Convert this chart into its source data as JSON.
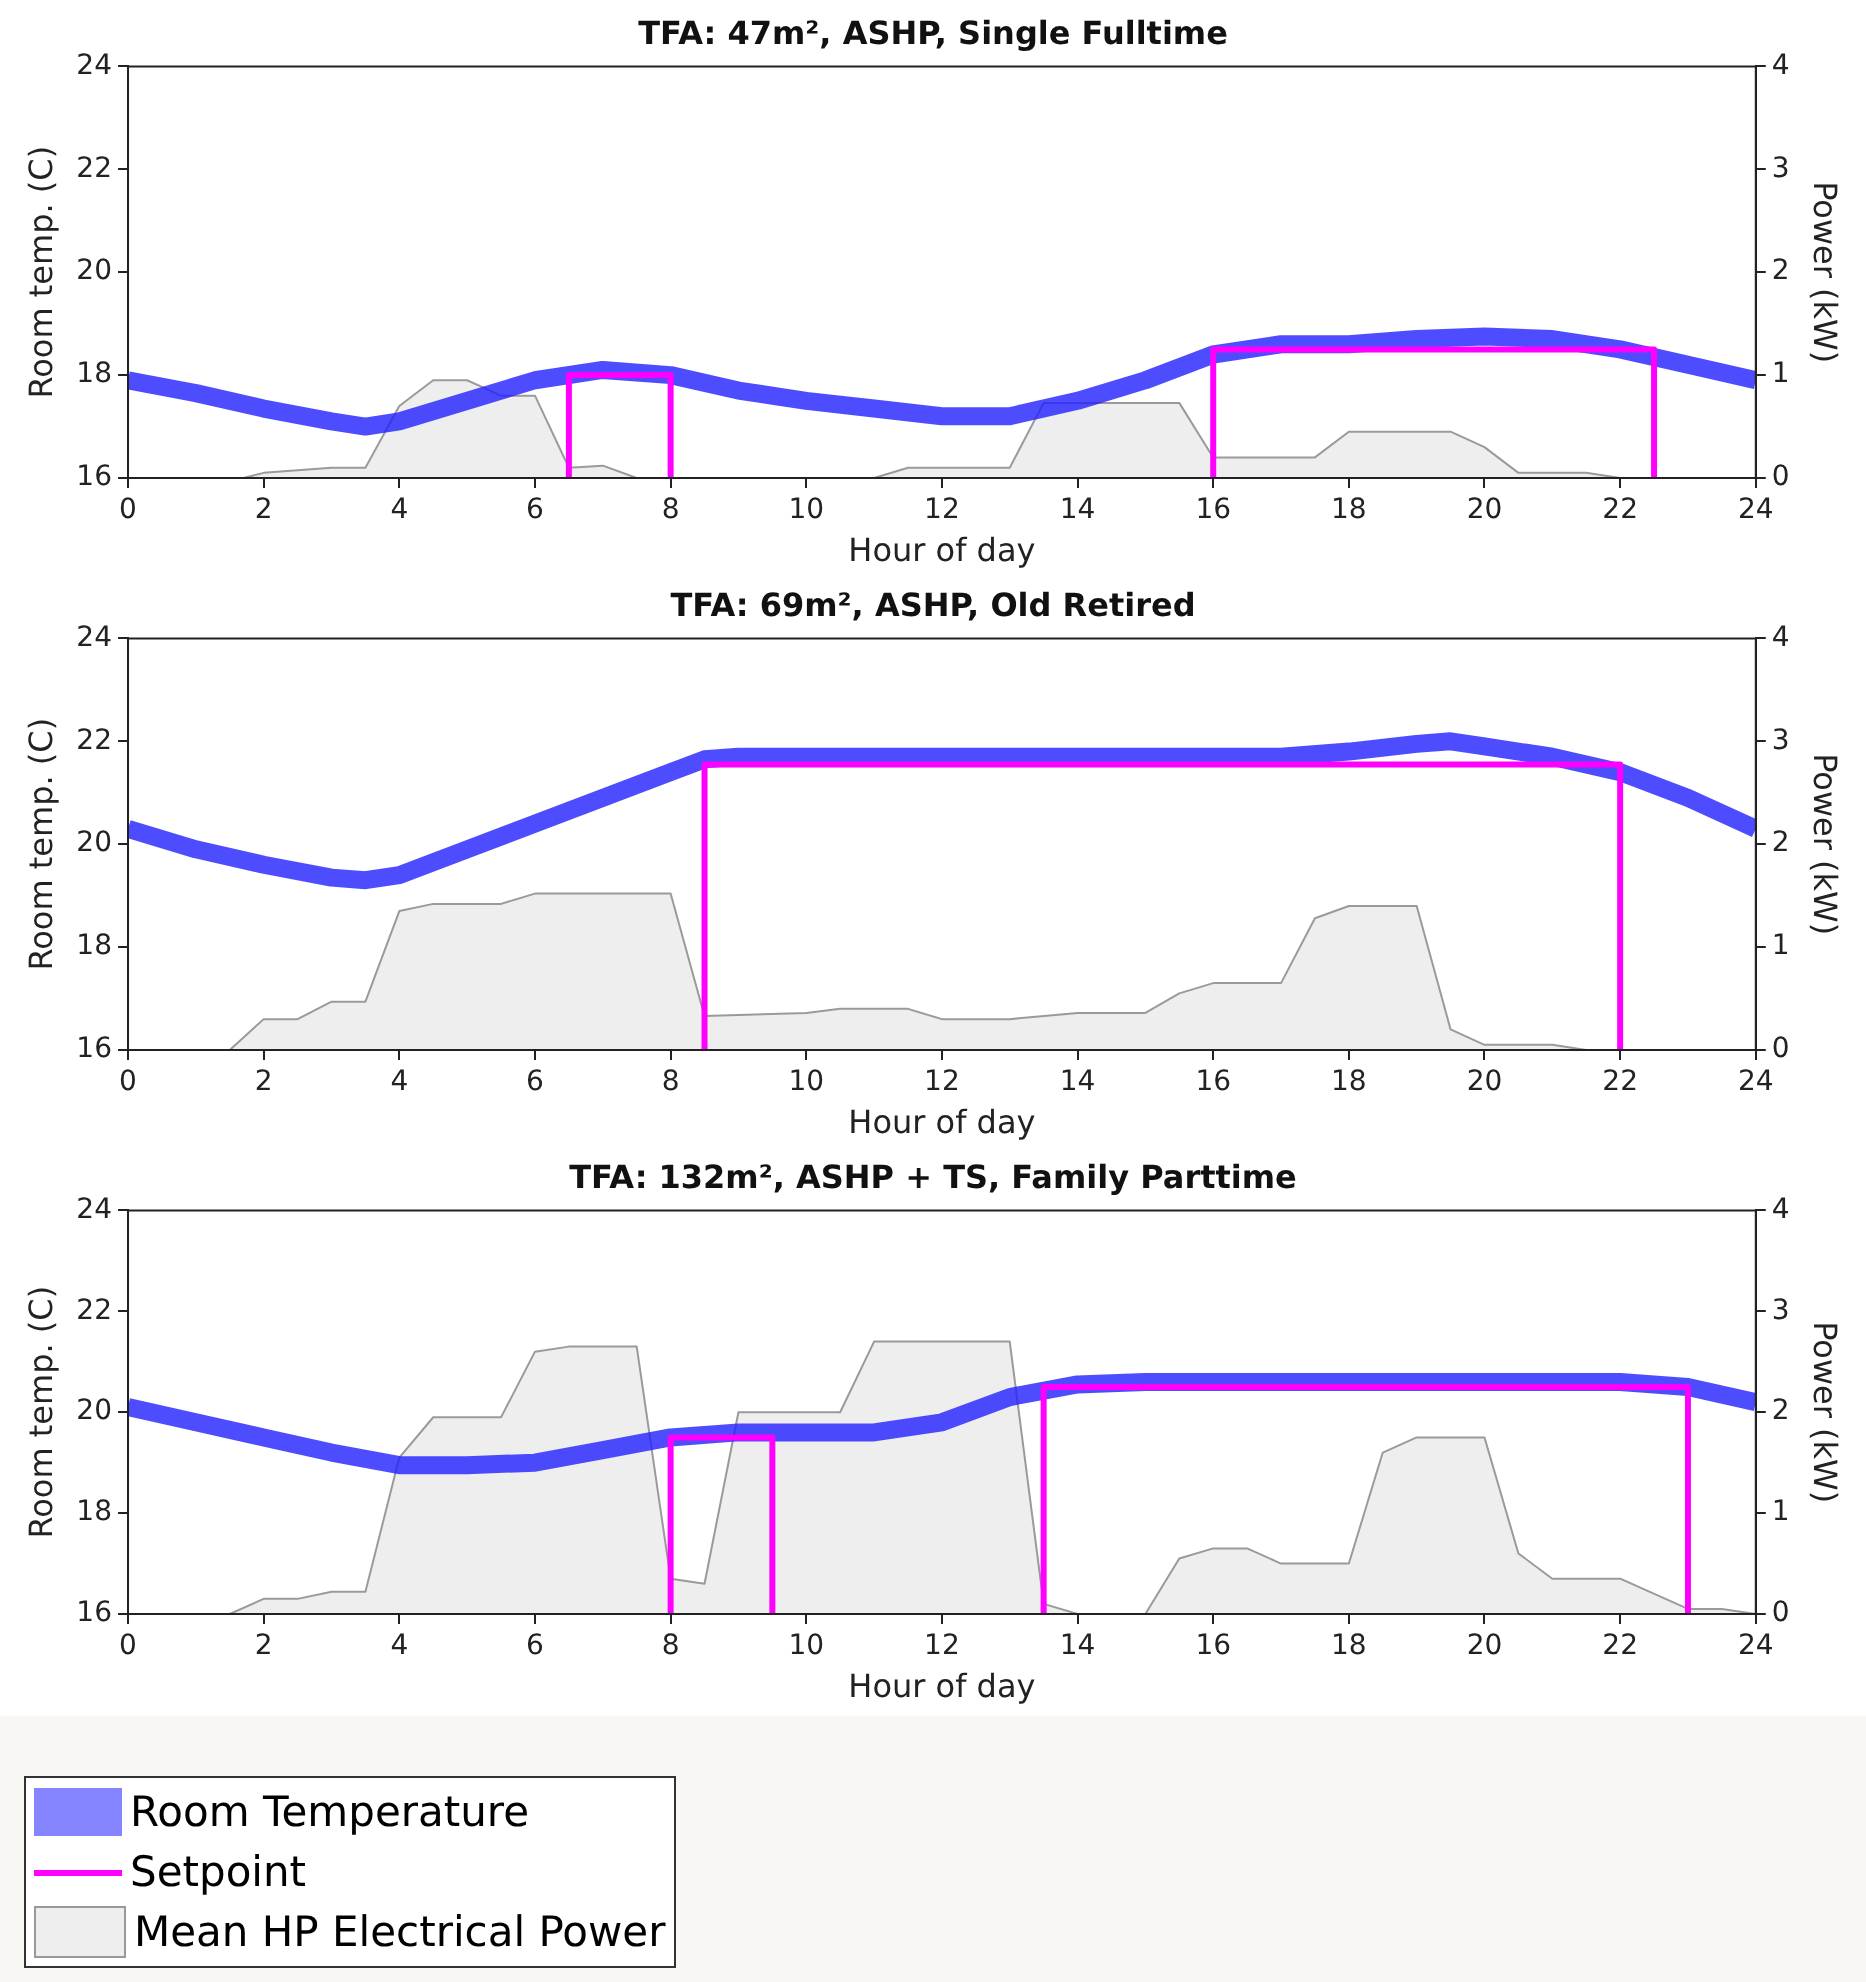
{
  "chart_data": [
    {
      "type": "line",
      "title": "TFA: 47m², ASHP, Single Fulltime",
      "xlabel": "Hour of day",
      "ylabel": "Room temp. (C)",
      "y2label": "Power (kW)",
      "xlim": [
        0,
        24
      ],
      "xticks": [
        0,
        2,
        4,
        6,
        8,
        10,
        12,
        14,
        16,
        18,
        20,
        22,
        24
      ],
      "ylim": [
        16,
        24
      ],
      "yticks": [
        16,
        18,
        20,
        22,
        24
      ],
      "y2lim": [
        0,
        4
      ],
      "y2ticks": [
        0,
        1,
        2,
        3,
        4
      ],
      "grid": false,
      "legend": false,
      "series": [
        {
          "type": "area",
          "axis": "y2",
          "color": "#eeeeee",
          "x": [
            0,
            1.7,
            2,
            3,
            3.5,
            4,
            4.5,
            5,
            5.5,
            6,
            6.5,
            7,
            7.5,
            11,
            11.5,
            13,
            13.5,
            15.5,
            16,
            17.5,
            18,
            19.5,
            20,
            20.5,
            21.5,
            22,
            24
          ],
          "values": [
            0,
            0,
            0.05,
            0.1,
            0.1,
            0.7,
            0.95,
            0.95,
            0.8,
            0.8,
            0.1,
            0.12,
            0,
            0,
            0.1,
            0.1,
            0.73,
            0.73,
            0.2,
            0.2,
            0.45,
            0.45,
            0.3,
            0.05,
            0.05,
            0,
            0
          ]
        },
        {
          "color": "#2020ff",
          "x": [
            0,
            1,
            2,
            3,
            3.5,
            4,
            5,
            6,
            7,
            8,
            9,
            10,
            11,
            12,
            13,
            14,
            15,
            16,
            17,
            18,
            19,
            20,
            21,
            22,
            23,
            24
          ],
          "values": [
            17.9,
            17.65,
            17.35,
            17.1,
            17.0,
            17.1,
            17.5,
            17.9,
            18.1,
            18.0,
            17.7,
            17.5,
            17.35,
            17.2,
            17.2,
            17.5,
            17.9,
            18.4,
            18.6,
            18.6,
            18.7,
            18.75,
            18.7,
            18.5,
            18.2,
            17.9
          ]
        },
        {
          "type": "step",
          "color": "#ff00ff",
          "x": [
            6.5,
            6.5,
            8,
            8,
            12,
            16,
            16,
            22.5,
            22.5
          ],
          "values": [
            16,
            18,
            18,
            16,
            null,
            16,
            18.5,
            18.5,
            16
          ]
        }
      ]
    },
    {
      "type": "line",
      "title": "TFA: 69m², ASHP, Old Retired",
      "xlabel": "Hour of day",
      "ylabel": "Room temp. (C)",
      "y2label": "Power (kW)",
      "xlim": [
        0,
        24
      ],
      "xticks": [
        0,
        2,
        4,
        6,
        8,
        10,
        12,
        14,
        16,
        18,
        20,
        22,
        24
      ],
      "ylim": [
        16,
        24
      ],
      "yticks": [
        16,
        18,
        20,
        22,
        24
      ],
      "y2lim": [
        0,
        4
      ],
      "y2ticks": [
        0,
        1,
        2,
        3,
        4
      ],
      "grid": false,
      "legend": false,
      "series": [
        {
          "type": "area",
          "axis": "y2",
          "color": "#eeeeee",
          "x": [
            0,
            1.5,
            2,
            2.5,
            3,
            3.5,
            4,
            4.5,
            5.5,
            6,
            8,
            8.5,
            10,
            10.5,
            11.5,
            12,
            13,
            14,
            15,
            15.5,
            16,
            17,
            17.5,
            18,
            19,
            19.5,
            20,
            21,
            21.5,
            24
          ],
          "values": [
            0,
            0,
            0.3,
            0.3,
            0.47,
            0.47,
            1.35,
            1.42,
            1.42,
            1.52,
            1.52,
            0.33,
            0.36,
            0.4,
            0.4,
            0.3,
            0.3,
            0.36,
            0.36,
            0.55,
            0.65,
            0.65,
            1.28,
            1.4,
            1.4,
            0.2,
            0.05,
            0.05,
            0,
            0
          ]
        },
        {
          "color": "#2020ff",
          "x": [
            0,
            1,
            2,
            3,
            3.5,
            4,
            5,
            6,
            7,
            8,
            8.5,
            9,
            10,
            12,
            14,
            16,
            17,
            18,
            19,
            19.5,
            20,
            21,
            22,
            23,
            24
          ],
          "values": [
            20.3,
            19.9,
            19.6,
            19.35,
            19.3,
            19.4,
            19.9,
            20.4,
            20.9,
            21.4,
            21.65,
            21.7,
            21.7,
            21.7,
            21.7,
            21.7,
            21.7,
            21.8,
            21.95,
            22.0,
            21.9,
            21.7,
            21.4,
            20.9,
            20.3
          ]
        },
        {
          "type": "step",
          "color": "#ff00ff",
          "x": [
            8.5,
            8.5,
            22,
            22
          ],
          "values": [
            16,
            21.55,
            21.55,
            16
          ]
        }
      ]
    },
    {
      "type": "line",
      "title": "TFA: 132m², ASHP + TS, Family Parttime",
      "xlabel": "Hour of day",
      "ylabel": "Room temp. (C)",
      "y2label": "Power (kW)",
      "xlim": [
        0,
        24
      ],
      "xticks": [
        0,
        2,
        4,
        6,
        8,
        10,
        12,
        14,
        16,
        18,
        20,
        22,
        24
      ],
      "ylim": [
        16,
        24
      ],
      "yticks": [
        16,
        18,
        20,
        22,
        24
      ],
      "y2lim": [
        0,
        4
      ],
      "y2ticks": [
        0,
        1,
        2,
        3,
        4
      ],
      "grid": false,
      "legend": "bottom left",
      "series": [
        {
          "name": "Room Temperature",
          "color": "#2020ff",
          "x": [
            0,
            1,
            2,
            3,
            4,
            5,
            6,
            7,
            8,
            9,
            10,
            11,
            12,
            13,
            14,
            15,
            16,
            17,
            18,
            19,
            20,
            21,
            22,
            23,
            24
          ],
          "values": [
            20.1,
            19.8,
            19.5,
            19.2,
            18.95,
            18.95,
            19.0,
            19.25,
            19.5,
            19.6,
            19.6,
            19.6,
            19.8,
            20.3,
            20.55,
            20.6,
            20.6,
            20.6,
            20.6,
            20.6,
            20.6,
            20.6,
            20.6,
            20.5,
            20.2
          ]
        },
        {
          "name": "Setpoint",
          "type": "step",
          "color": "#ff00ff",
          "x": [
            8,
            8,
            9.5,
            9.5,
            11,
            13.5,
            13.5,
            23,
            23
          ],
          "values": [
            16,
            19.5,
            19.5,
            16,
            null,
            16,
            20.5,
            20.5,
            16
          ]
        },
        {
          "name": "Mean HP Electrical Power",
          "type": "area",
          "axis": "y2",
          "color": "#eeeeee",
          "x": [
            0,
            1.5,
            2,
            2.5,
            3,
            3.5,
            4,
            4.5,
            5.5,
            6,
            6.5,
            7.5,
            8,
            8.5,
            9,
            10.5,
            11,
            13,
            13.5,
            14,
            15,
            15.5,
            16,
            16.5,
            17,
            18,
            18.5,
            19,
            20,
            20.5,
            21,
            22,
            23,
            23.5,
            24
          ],
          "values": [
            0,
            0,
            0.15,
            0.15,
            0.22,
            0.22,
            1.55,
            1.95,
            1.95,
            2.6,
            2.65,
            2.65,
            0.35,
            0.3,
            2.0,
            2.0,
            2.7,
            2.7,
            0.1,
            0,
            0,
            0.55,
            0.65,
            0.65,
            0.5,
            0.5,
            1.6,
            1.75,
            1.75,
            0.6,
            0.35,
            0.35,
            0.05,
            0.05,
            0
          ]
        }
      ]
    }
  ]
}
